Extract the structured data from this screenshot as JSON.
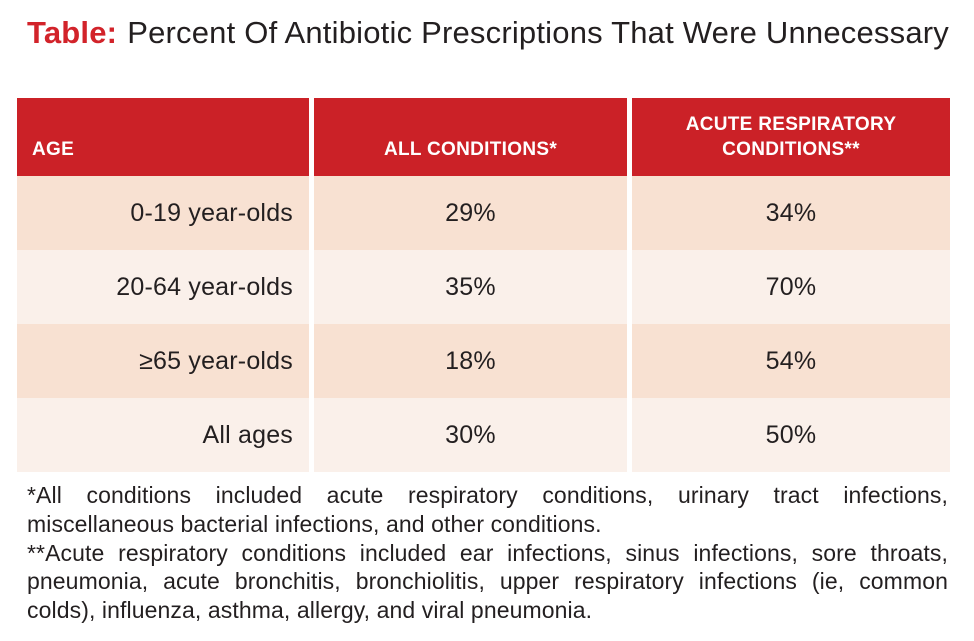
{
  "colors": {
    "header_red": "#CB2127",
    "title_red": "#D2232A",
    "row_dark_peach": "#F8E1D2",
    "row_light_peach": "#FAF0EA",
    "text_dark": "#231F20",
    "header_text": "#FFFFFF"
  },
  "title": {
    "prefix": "Table:",
    "text": "Percent Of Antibiotic Prescriptions That Were Unnecessary"
  },
  "table": {
    "columns": [
      {
        "label": "AGE"
      },
      {
        "label": "ALL CONDITIONS*"
      },
      {
        "label": "ACUTE RESPIRATORY CONDITIONS**"
      }
    ],
    "rows": [
      {
        "age": "0-19 year-olds",
        "all_conditions": "29%",
        "acute_respiratory": "34%"
      },
      {
        "age": "20-64 year-olds",
        "all_conditions": "35%",
        "acute_respiratory": "70%"
      },
      {
        "age": "≥65 year-olds",
        "all_conditions": "18%",
        "acute_respiratory": "54%"
      },
      {
        "age": "All ages",
        "all_conditions": "30%",
        "acute_respiratory": "50%"
      }
    ]
  },
  "footnotes": [
    "*All conditions included acute respiratory conditions, urinary tract infections, miscellaneous bacterial infections, and other conditions.",
    "**Acute respiratory conditions included ear infections, sinus infections, sore throats, pneumonia, acute bronchitis, bronchiolitis, upper respiratory infections (ie, common colds), influenza, asthma, allergy, and viral pneumonia."
  ],
  "chart_data": {
    "type": "table",
    "title": "Table: Percent Of Antibiotic Prescriptions That Were Unnecessary",
    "columns": [
      "AGE",
      "ALL CONDITIONS*",
      "ACUTE RESPIRATORY CONDITIONS**"
    ],
    "rows": [
      [
        "0-19 year-olds",
        "29%",
        "34%"
      ],
      [
        "20-64 year-olds",
        "35%",
        "70%"
      ],
      [
        "≥65 year-olds",
        "18%",
        "54%"
      ],
      [
        "All ages",
        "30%",
        "50%"
      ]
    ],
    "values_percent": {
      "all_conditions": [
        29,
        35,
        18,
        30
      ],
      "acute_respiratory_conditions": [
        34,
        70,
        54,
        50
      ]
    },
    "footnotes": [
      "*All conditions included acute respiratory conditions, urinary tract infections, miscellaneous bacterial infections, and other conditions.",
      "**Acute respiratory conditions included ear infections, sinus infections, sore throats, pneumonia, acute bronchitis, bronchiolitis, upper respiratory infections (ie, common colds), influenza, asthma, allergy, and viral pneumonia."
    ]
  }
}
